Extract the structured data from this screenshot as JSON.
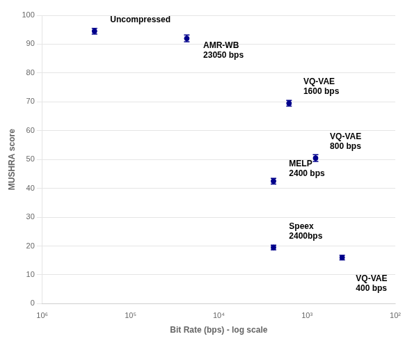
{
  "chart_data": {
    "type": "scatter",
    "xlabel": "Bit Rate (bps) - log scale",
    "ylabel": "MUSHRA score",
    "log": "x",
    "xlim": [
      1000000,
      100
    ],
    "xticks": [
      {
        "value": 1000000,
        "label": "10⁶"
      },
      {
        "value": 100000,
        "label": "10⁵"
      },
      {
        "value": 10000,
        "label": "10⁴"
      },
      {
        "value": 1000,
        "label": "10³"
      },
      {
        "value": 100,
        "label": "10²"
      }
    ],
    "ylim": [
      0,
      100
    ],
    "yticks": [
      0,
      10,
      20,
      30,
      40,
      50,
      60,
      70,
      80,
      90,
      100
    ],
    "grid": "y",
    "legend": false,
    "x": [
      256000,
      23050,
      1600,
      800,
      2400,
      2400,
      400
    ],
    "values": [
      94.5,
      92.0,
      69.5,
      50.5,
      42.5,
      19.5,
      16.0
    ],
    "yerr": [
      1.0,
      1.2,
      1.0,
      1.2,
      1.0,
      0.8,
      0.8
    ],
    "color": "#00008B",
    "marker": "circle",
    "annotations": [
      {
        "text": "Uncompressed",
        "x": 170000,
        "y": 97.0
      },
      {
        "text": "AMR-WB\n23050 bps",
        "x": 15000,
        "y": 91.0
      },
      {
        "text": "VQ-VAE\n1600 bps",
        "x": 1100,
        "y": 72.0
      },
      {
        "text": "VQ-VAE\n800 bps",
        "x": 550,
        "y": 53.0
      },
      {
        "text": "MELP\n2400 bps",
        "x": 1600,
        "y": 43.5
      },
      {
        "text": "Speex\n2400bps",
        "x": 1600,
        "y": 22.0
      },
      {
        "text": "VQ-VAE\n400 bps",
        "x": 280,
        "y": 10.0
      }
    ]
  }
}
